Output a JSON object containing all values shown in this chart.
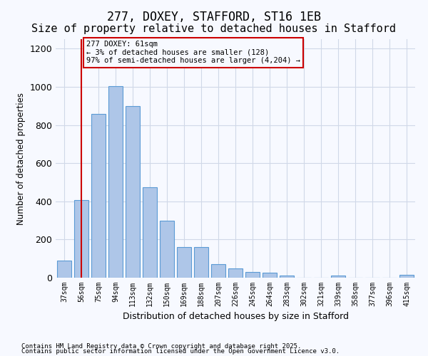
{
  "title_line1": "277, DOXEY, STAFFORD, ST16 1EB",
  "title_line2": "Size of property relative to detached houses in Stafford",
  "xlabel": "Distribution of detached houses by size in Stafford",
  "ylabel": "Number of detached properties",
  "categories": [
    "37sqm",
    "56sqm",
    "75sqm",
    "94sqm",
    "113sqm",
    "132sqm",
    "150sqm",
    "169sqm",
    "188sqm",
    "207sqm",
    "226sqm",
    "245sqm",
    "264sqm",
    "283sqm",
    "302sqm",
    "321sqm",
    "339sqm",
    "358sqm",
    "377sqm",
    "396sqm",
    "415sqm"
  ],
  "values": [
    90,
    405,
    860,
    1005,
    900,
    475,
    300,
    160,
    160,
    70,
    50,
    30,
    25,
    10,
    0,
    0,
    10,
    0,
    0,
    0,
    15
  ],
  "bar_color": "#aec6e8",
  "bar_edge_color": "#5b9bd5",
  "grid_color": "#d0d8e8",
  "vline_x": 1,
  "vline_color": "#cc0000",
  "annotation_text": "277 DOXEY: 61sqm\n← 3% of detached houses are smaller (128)\n97% of semi-detached houses are larger (4,204) →",
  "annotation_box_color": "#cc0000",
  "ylim": [
    0,
    1250
  ],
  "yticks": [
    0,
    200,
    400,
    600,
    800,
    1000,
    1200
  ],
  "footer_line1": "Contains HM Land Registry data © Crown copyright and database right 2025.",
  "footer_line2": "Contains public sector information licensed under the Open Government Licence v3.0.",
  "bg_color": "#f7f9ff",
  "title_fontsize": 12,
  "subtitle_fontsize": 11
}
